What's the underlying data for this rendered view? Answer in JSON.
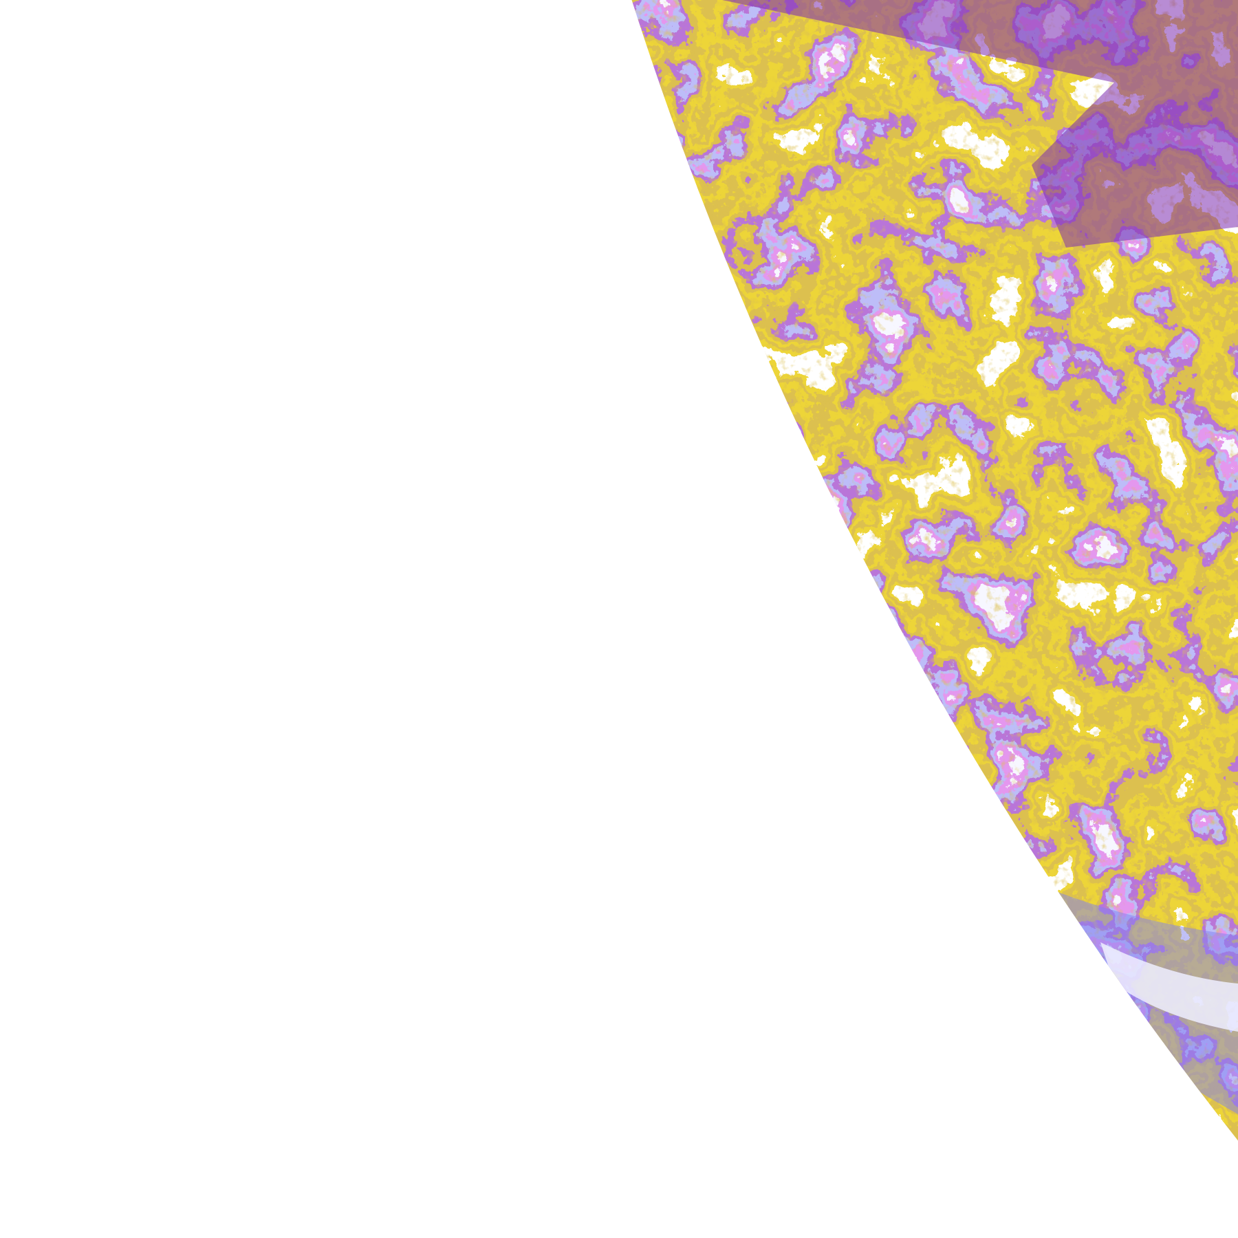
{
  "image": {
    "kind": "false-color satellite imagery, edge of Earth disk",
    "background_color": "#ffffff",
    "palette": {
      "clear": "#ffffff",
      "gold": "#d9ab0a",
      "dark_gold": "#b88714",
      "purple": "#7d2db0",
      "periwinkle": "#8282f0",
      "magenta": "#c850dc",
      "pale_lavender": "#eeeeff"
    }
  }
}
